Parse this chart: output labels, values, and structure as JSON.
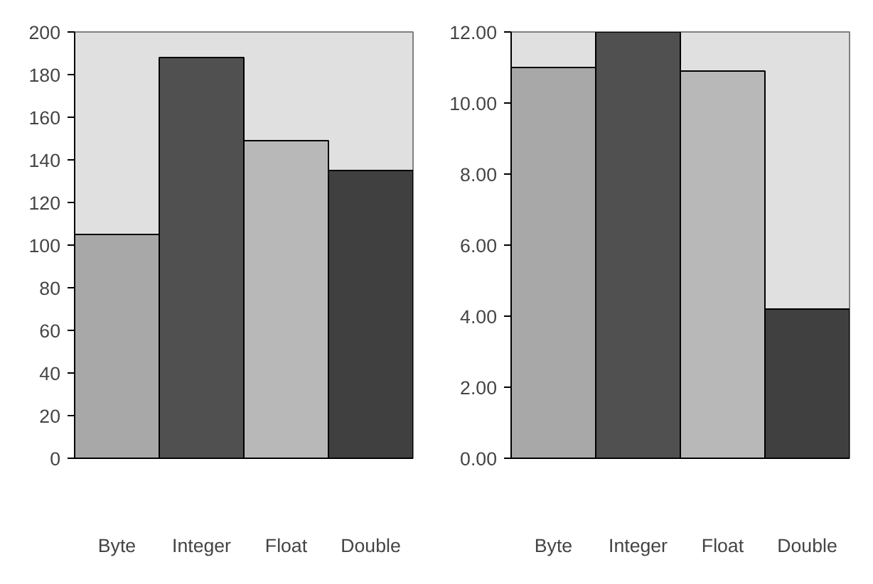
{
  "chart_data": [
    {
      "type": "bar",
      "categories": [
        "Byte",
        "Integer",
        "Float",
        "Double"
      ],
      "values": [
        105,
        188,
        149,
        135
      ],
      "colors": [
        "#a8a8a8",
        "#505050",
        "#b8b8b8",
        "#404040"
      ],
      "ylim": [
        0,
        200
      ],
      "yticks": [
        0,
        20,
        40,
        60,
        80,
        100,
        120,
        140,
        160,
        180,
        200
      ],
      "grid": false
    },
    {
      "type": "bar",
      "categories": [
        "Byte",
        "Integer",
        "Float",
        "Double"
      ],
      "values": [
        11.0,
        12.0,
        10.9,
        4.2
      ],
      "colors": [
        "#a8a8a8",
        "#505050",
        "#b8b8b8",
        "#404040"
      ],
      "ylim": [
        0,
        12
      ],
      "yticks": [
        {
          "value": 0,
          "label": "0.00"
        },
        {
          "value": 2,
          "label": "2.00"
        },
        {
          "value": 4,
          "label": "4.00"
        },
        {
          "value": 6,
          "label": "6.00"
        },
        {
          "value": 8,
          "label": "8.00"
        },
        {
          "value": 10,
          "label": "10.00"
        },
        {
          "value": 12,
          "label": "12.00"
        }
      ],
      "grid": false
    }
  ]
}
